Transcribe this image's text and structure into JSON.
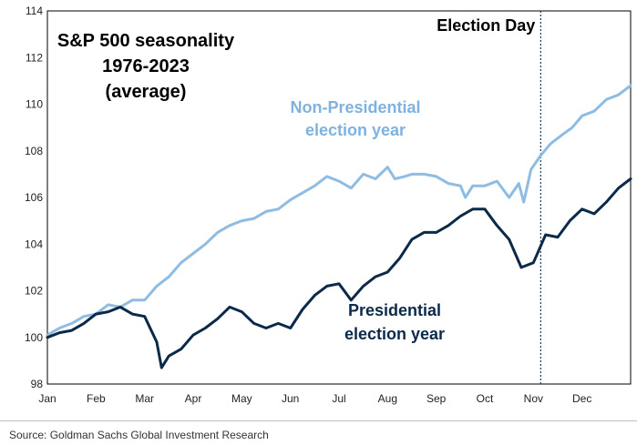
{
  "chart_data": {
    "type": "line",
    "title_lines": [
      "S&P 500 seasonality",
      "1976-2023",
      "(average)"
    ],
    "xlabel": "",
    "ylabel": "",
    "ylim": [
      98,
      114
    ],
    "yticks": [
      98,
      100,
      102,
      104,
      106,
      108,
      110,
      112,
      114
    ],
    "xlim": [
      0,
      12
    ],
    "xticks": [
      {
        "label": "Jan",
        "x": 0
      },
      {
        "label": "Feb",
        "x": 1
      },
      {
        "label": "Mar",
        "x": 2
      },
      {
        "label": "Apr",
        "x": 3
      },
      {
        "label": "May",
        "x": 4
      },
      {
        "label": "Jun",
        "x": 5
      },
      {
        "label": "Jul",
        "x": 6
      },
      {
        "label": "Aug",
        "x": 7
      },
      {
        "label": "Sep",
        "x": 8
      },
      {
        "label": "Oct",
        "x": 9
      },
      {
        "label": "Nov",
        "x": 10
      },
      {
        "label": "Dec",
        "x": 11
      }
    ],
    "annotation": {
      "label": "Election Day",
      "x": 10.15
    },
    "series": [
      {
        "name": "Non-Presidential election year",
        "label_lines": [
          "Non-Presidential",
          "election year"
        ],
        "color": "#8ebce3",
        "x": [
          0,
          0.25,
          0.5,
          0.75,
          1.0,
          1.25,
          1.5,
          1.75,
          2.0,
          2.25,
          2.5,
          2.75,
          3.0,
          3.25,
          3.5,
          3.75,
          4.0,
          4.25,
          4.5,
          4.75,
          5.0,
          5.25,
          5.5,
          5.75,
          6.0,
          6.25,
          6.5,
          6.75,
          7.0,
          7.15,
          7.35,
          7.5,
          7.75,
          8.0,
          8.25,
          8.5,
          8.6,
          8.75,
          9.0,
          9.25,
          9.5,
          9.7,
          9.8,
          9.95,
          10.15,
          10.35,
          10.6,
          10.8,
          11.0,
          11.25,
          11.5,
          11.75,
          12.0
        ],
        "values": [
          100.1,
          100.4,
          100.6,
          100.9,
          101.0,
          101.4,
          101.3,
          101.6,
          101.6,
          102.2,
          102.6,
          103.2,
          103.6,
          104.0,
          104.5,
          104.8,
          105.0,
          105.1,
          105.4,
          105.5,
          105.9,
          106.2,
          106.5,
          106.9,
          106.7,
          106.4,
          107.0,
          106.8,
          107.3,
          106.8,
          106.9,
          107.0,
          107.0,
          106.9,
          106.6,
          106.5,
          106.0,
          106.5,
          106.5,
          106.7,
          106.0,
          106.6,
          105.8,
          107.2,
          107.8,
          108.3,
          108.7,
          109.0,
          109.5,
          109.7,
          110.2,
          110.4,
          110.8
        ]
      },
      {
        "name": "Presidential election year",
        "label_lines": [
          "Presidential",
          "election year"
        ],
        "color": "#0b2a4a",
        "x": [
          0,
          0.25,
          0.5,
          0.75,
          1.0,
          1.25,
          1.5,
          1.75,
          2.0,
          2.25,
          2.35,
          2.5,
          2.75,
          3.0,
          3.25,
          3.5,
          3.75,
          4.0,
          4.25,
          4.5,
          4.75,
          5.0,
          5.25,
          5.5,
          5.75,
          6.0,
          6.25,
          6.5,
          6.75,
          7.0,
          7.25,
          7.5,
          7.75,
          8.0,
          8.25,
          8.5,
          8.75,
          9.0,
          9.25,
          9.5,
          9.75,
          10.0,
          10.25,
          10.5,
          10.75,
          11.0,
          11.25,
          11.5,
          11.75,
          12.0
        ],
        "values": [
          100.0,
          100.2,
          100.3,
          100.6,
          101.0,
          101.1,
          101.3,
          101.0,
          100.9,
          99.8,
          98.7,
          99.2,
          99.5,
          100.1,
          100.4,
          100.8,
          101.3,
          101.1,
          100.6,
          100.4,
          100.6,
          100.4,
          101.2,
          101.8,
          102.2,
          102.3,
          101.6,
          102.2,
          102.6,
          102.8,
          103.4,
          104.2,
          104.5,
          104.5,
          104.8,
          105.2,
          105.5,
          105.5,
          104.8,
          104.2,
          103.0,
          103.2,
          104.4,
          104.3,
          105.0,
          105.5,
          105.3,
          105.8,
          106.4,
          106.8
        ]
      }
    ],
    "source": "Source: Goldman Sachs Global Investment Research"
  }
}
